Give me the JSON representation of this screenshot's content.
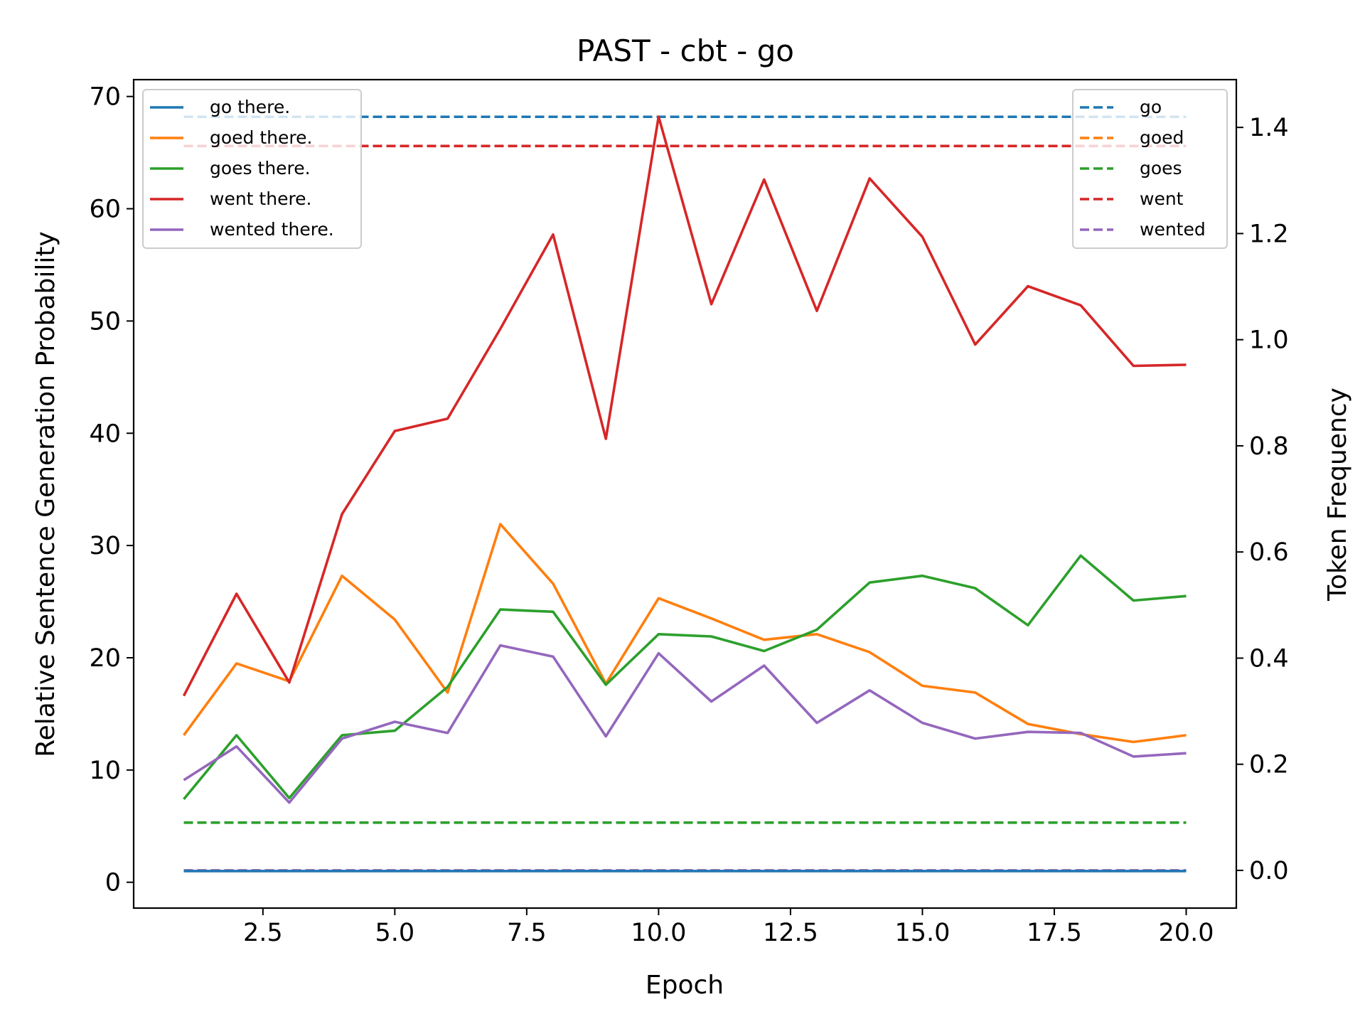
{
  "chart_data": {
    "type": "line",
    "title": "PAST - cbt - go",
    "xlabel": "Epoch",
    "ylabel": "Relative Sentence Generation Probability",
    "y2label": "Token Frequency",
    "x": [
      1,
      2,
      3,
      4,
      5,
      6,
      7,
      8,
      9,
      10,
      11,
      12,
      13,
      14,
      15,
      16,
      17,
      18,
      19,
      20
    ],
    "xlim": [
      0.05,
      20.95
    ],
    "ylim": [
      -2.3,
      71.5
    ],
    "y2lim": [
      -0.071,
      1.49
    ],
    "x_ticks": [
      "2.5",
      "5.0",
      "7.5",
      "10.0",
      "12.5",
      "15.0",
      "17.5",
      "20.0"
    ],
    "y_ticks": [
      "0",
      "10",
      "20",
      "30",
      "40",
      "50",
      "60",
      "70"
    ],
    "y2_ticks": [
      "0.0",
      "0.2",
      "0.4",
      "0.6",
      "0.8",
      "1.0",
      "1.2",
      "1.4"
    ],
    "grid": false,
    "series": [
      {
        "name": "go there.",
        "color": "#1f77b4",
        "values": [
          1.0,
          1.0,
          1.0,
          1.0,
          1.0,
          1.0,
          1.0,
          1.0,
          1.0,
          1.0,
          1.0,
          1.0,
          1.0,
          1.0,
          1.0,
          1.0,
          1.0,
          1.0,
          1.0,
          1.0
        ]
      },
      {
        "name": "goed there.",
        "color": "#ff7f0e",
        "values": [
          13.1,
          19.5,
          17.9,
          27.3,
          23.4,
          16.9,
          31.9,
          26.6,
          17.7,
          25.3,
          23.5,
          21.6,
          22.1,
          20.5,
          17.5,
          16.9,
          14.1,
          13.2,
          12.5,
          13.1
        ]
      },
      {
        "name": "goes there.",
        "color": "#2ca02c",
        "values": [
          7.4,
          13.1,
          7.5,
          13.1,
          13.5,
          17.4,
          24.3,
          24.1,
          17.6,
          22.1,
          21.9,
          20.6,
          22.5,
          26.7,
          27.3,
          26.2,
          22.9,
          29.1,
          25.1,
          25.5
        ]
      },
      {
        "name": "went there.",
        "color": "#d62728",
        "values": [
          16.6,
          25.7,
          17.8,
          32.8,
          40.2,
          41.3,
          49.3,
          57.7,
          39.5,
          68.2,
          51.5,
          62.6,
          50.9,
          62.7,
          57.5,
          47.9,
          53.1,
          51.4,
          46.0,
          46.1
        ]
      },
      {
        "name": "wented there.",
        "color": "#9467bd",
        "values": [
          9.1,
          12.1,
          7.1,
          12.8,
          14.3,
          13.3,
          21.1,
          20.1,
          13.0,
          20.4,
          16.1,
          19.3,
          14.2,
          17.1,
          14.2,
          12.8,
          13.4,
          13.3,
          11.2,
          11.5
        ]
      }
    ],
    "frequency_series": [
      {
        "name": "go",
        "color": "#1f77b4",
        "value": 1.42
      },
      {
        "name": "goed",
        "color": "#ff7f0e",
        "value": 0.0
      },
      {
        "name": "goes",
        "color": "#2ca02c",
        "value": 0.09
      },
      {
        "name": "went",
        "color": "#d62728",
        "value": 1.365
      },
      {
        "name": "wented",
        "color": "#9467bd",
        "value": 0.0
      }
    ],
    "legend_left_placement": "upper-left",
    "legend_right_placement": "upper-right"
  }
}
